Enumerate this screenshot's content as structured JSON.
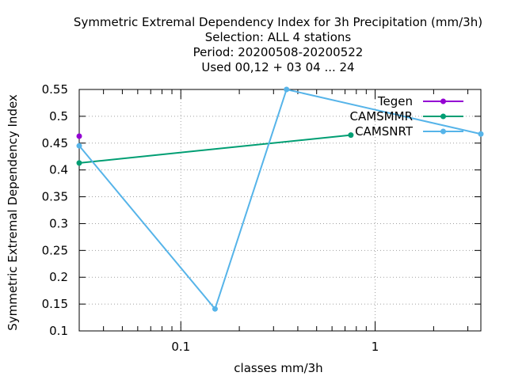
{
  "chart_data": {
    "type": "line",
    "title_lines": [
      "Symmetric Extremal Dependency Index  for 3h Precipitation (mm/3h)",
      "Selection: ALL      4 stations",
      "Period: 20200508-20200522",
      "Used  00,12  + 03 04 ... 24"
    ],
    "xlabel": "classes mm/3h",
    "ylabel": "Symmetric Extremal Dependency Index",
    "x_scale": "log",
    "xlim": [
      0.03,
      3.5
    ],
    "ylim": [
      0.1,
      0.55
    ],
    "x_ticks": [
      {
        "value": 0.1,
        "label": "0.1"
      },
      {
        "value": 1,
        "label": "1"
      }
    ],
    "y_ticks": [
      {
        "value": 0.1,
        "label": "0.1"
      },
      {
        "value": 0.15,
        "label": "0.15"
      },
      {
        "value": 0.2,
        "label": "0.2"
      },
      {
        "value": 0.25,
        "label": "0.25"
      },
      {
        "value": 0.3,
        "label": "0.3"
      },
      {
        "value": 0.35,
        "label": "0.35"
      },
      {
        "value": 0.4,
        "label": "0.4"
      },
      {
        "value": 0.45,
        "label": "0.45"
      },
      {
        "value": 0.5,
        "label": "0.5"
      },
      {
        "value": 0.55,
        "label": "0.55"
      }
    ],
    "grid": true,
    "legend_position": "top-right",
    "series": [
      {
        "name": "Tegen",
        "color": "#9400d3",
        "x": [
          0.03
        ],
        "y": [
          0.463
        ]
      },
      {
        "name": "CAMSMMR",
        "color": "#009e73",
        "x": [
          0.03,
          0.75
        ],
        "y": [
          0.413,
          0.465
        ]
      },
      {
        "name": "CAMSNRT",
        "color": "#56b4e9",
        "x": [
          0.03,
          0.15,
          0.35,
          3.5
        ],
        "y": [
          0.445,
          0.141,
          0.55,
          0.467
        ]
      }
    ]
  }
}
